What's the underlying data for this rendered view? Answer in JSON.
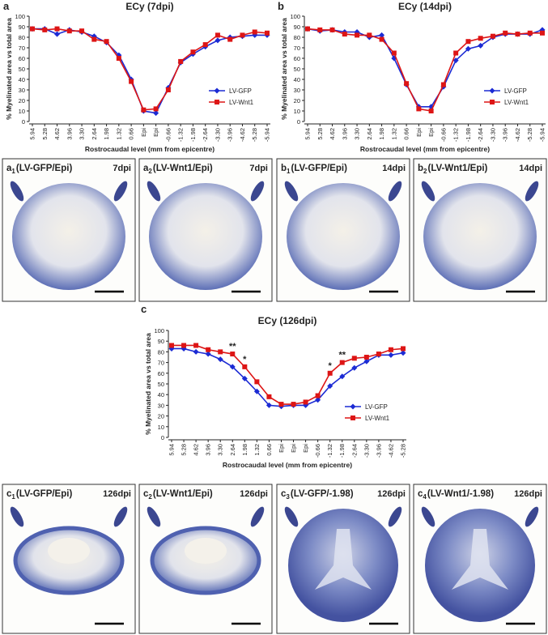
{
  "chart_data": [
    {
      "type": "line",
      "panel_label": "a",
      "title": "ECy (7dpi)",
      "y_label": "% Myelinated area vs total area",
      "x_label": "Rostrocaudal level (mm from epicentre)",
      "categories": [
        "5.94",
        "5.28",
        "4.62",
        "3.96",
        "3.30",
        "2.64",
        "1.98",
        "1.32",
        "0.66",
        "Epi",
        "Epi",
        "-0.66",
        "-1.32",
        "-1.98",
        "-2.64",
        "-3.30",
        "-3.96",
        "-4.62",
        "-5.28",
        "-5.94"
      ],
      "ylim": [
        0,
        100
      ],
      "yticks": [
        0,
        10,
        20,
        30,
        40,
        50,
        60,
        70,
        80,
        90,
        100
      ],
      "legend": "lower right",
      "series": [
        {
          "name": "LV-GFP",
          "color": "#1c2bd4",
          "marker": "diamond",
          "values": [
            88,
            88,
            83,
            87,
            85,
            81,
            75,
            63,
            40,
            10,
            8,
            32,
            56,
            64,
            71,
            77,
            80,
            81,
            82,
            82
          ]
        },
        {
          "name": "LV-Wnt1",
          "color": "#dd1515",
          "marker": "square",
          "values": [
            88,
            87,
            88,
            86,
            86,
            78,
            76,
            60,
            38,
            11,
            12,
            30,
            57,
            66,
            73,
            82,
            78,
            82,
            85,
            84
          ]
        }
      ]
    },
    {
      "type": "line",
      "panel_label": "b",
      "title": "ECy (14dpi)",
      "y_label": "% Myelinated area vs total area",
      "x_label": "Rostrocaudal level (mm from epicentre)",
      "categories": [
        "5.94",
        "5.28",
        "4.62",
        "3.96",
        "3.30",
        "2.64",
        "1.98",
        "1.32",
        "0.66",
        "Epi",
        "Epi",
        "-0.66",
        "-1.32",
        "-1.98",
        "-2.64",
        "-3.30",
        "-3.96",
        "-4.62",
        "-5.28",
        "-5.94"
      ],
      "ylim": [
        0,
        100
      ],
      "yticks": [
        0,
        10,
        20,
        30,
        40,
        50,
        60,
        70,
        80,
        90,
        100
      ],
      "legend": "lower right",
      "series": [
        {
          "name": "LV-GFP",
          "color": "#1c2bd4",
          "marker": "diamond",
          "values": [
            88,
            86,
            87,
            85,
            85,
            80,
            82,
            60,
            35,
            14,
            14,
            33,
            58,
            69,
            72,
            80,
            83,
            83,
            83,
            87
          ]
        },
        {
          "name": "LV-Wnt1",
          "color": "#dd1515",
          "marker": "square",
          "values": [
            88,
            87,
            87,
            83,
            82,
            82,
            78,
            65,
            36,
            12,
            10,
            35,
            65,
            76,
            79,
            81,
            84,
            83,
            84,
            84
          ]
        }
      ]
    },
    {
      "type": "line",
      "panel_label": "c",
      "title": "ECy (126dpi)",
      "y_label": "% Myelinated area vs total area",
      "x_label": "Rostrocaudal level (mm from epicentre)",
      "categories": [
        "5.94",
        "5.28",
        "4.62",
        "3.96",
        "3.30",
        "2.64",
        "1.98",
        "1.32",
        "0.66",
        "Epi",
        "Epi",
        "Epi",
        "-0.66",
        "-1.32",
        "-1.98",
        "-2.64",
        "-3.30",
        "-3.96",
        "-4.62",
        "-5.28"
      ],
      "ylim": [
        0,
        100
      ],
      "yticks": [
        0,
        10,
        20,
        30,
        40,
        50,
        60,
        70,
        80,
        90,
        100
      ],
      "legend": "lower right",
      "annotations": [
        {
          "text": "**",
          "category": "2.64"
        },
        {
          "text": "*",
          "category": "1.98"
        },
        {
          "text": "*",
          "category": "-1.32"
        },
        {
          "text": "**",
          "category": "-1.98"
        }
      ],
      "series": [
        {
          "name": "LV-GFP",
          "color": "#1c2bd4",
          "marker": "diamond",
          "values": [
            83,
            83,
            80,
            78,
            73,
            66,
            55,
            43,
            30,
            29,
            30,
            30,
            35,
            48,
            57,
            65,
            71,
            77,
            77,
            79
          ]
        },
        {
          "name": "LV-Wnt1",
          "color": "#dd1515",
          "marker": "square",
          "values": [
            86,
            86,
            86,
            82,
            80,
            78,
            66,
            52,
            38,
            31,
            31,
            33,
            39,
            60,
            70,
            74,
            75,
            78,
            82,
            83
          ]
        }
      ]
    }
  ],
  "panels": [
    {
      "letter": "a",
      "sub": "1",
      "label": "(LV-GFP/Epi)",
      "time": "7dpi"
    },
    {
      "letter": "a",
      "sub": "2",
      "label": "(LV-Wnt1/Epi)",
      "time": "7dpi"
    },
    {
      "letter": "b",
      "sub": "1",
      "label": "(LV-GFP/Epi)",
      "time": "14dpi"
    },
    {
      "letter": "b",
      "sub": "2",
      "label": "(LV-Wnt1/Epi)",
      "time": "14dpi"
    },
    {
      "letter": "c",
      "sub": "1",
      "label": "(LV-GFP/Epi)",
      "time": "126dpi"
    },
    {
      "letter": "c",
      "sub": "2",
      "label": "(LV-Wnt1/Epi)",
      "time": "126dpi"
    },
    {
      "letter": "c",
      "sub": "3",
      "label": "(LV-GFP/-1.98)",
      "time": "126dpi"
    },
    {
      "letter": "c",
      "sub": "4",
      "label": "(LV-Wnt1/-1.98)",
      "time": "126dpi"
    }
  ]
}
